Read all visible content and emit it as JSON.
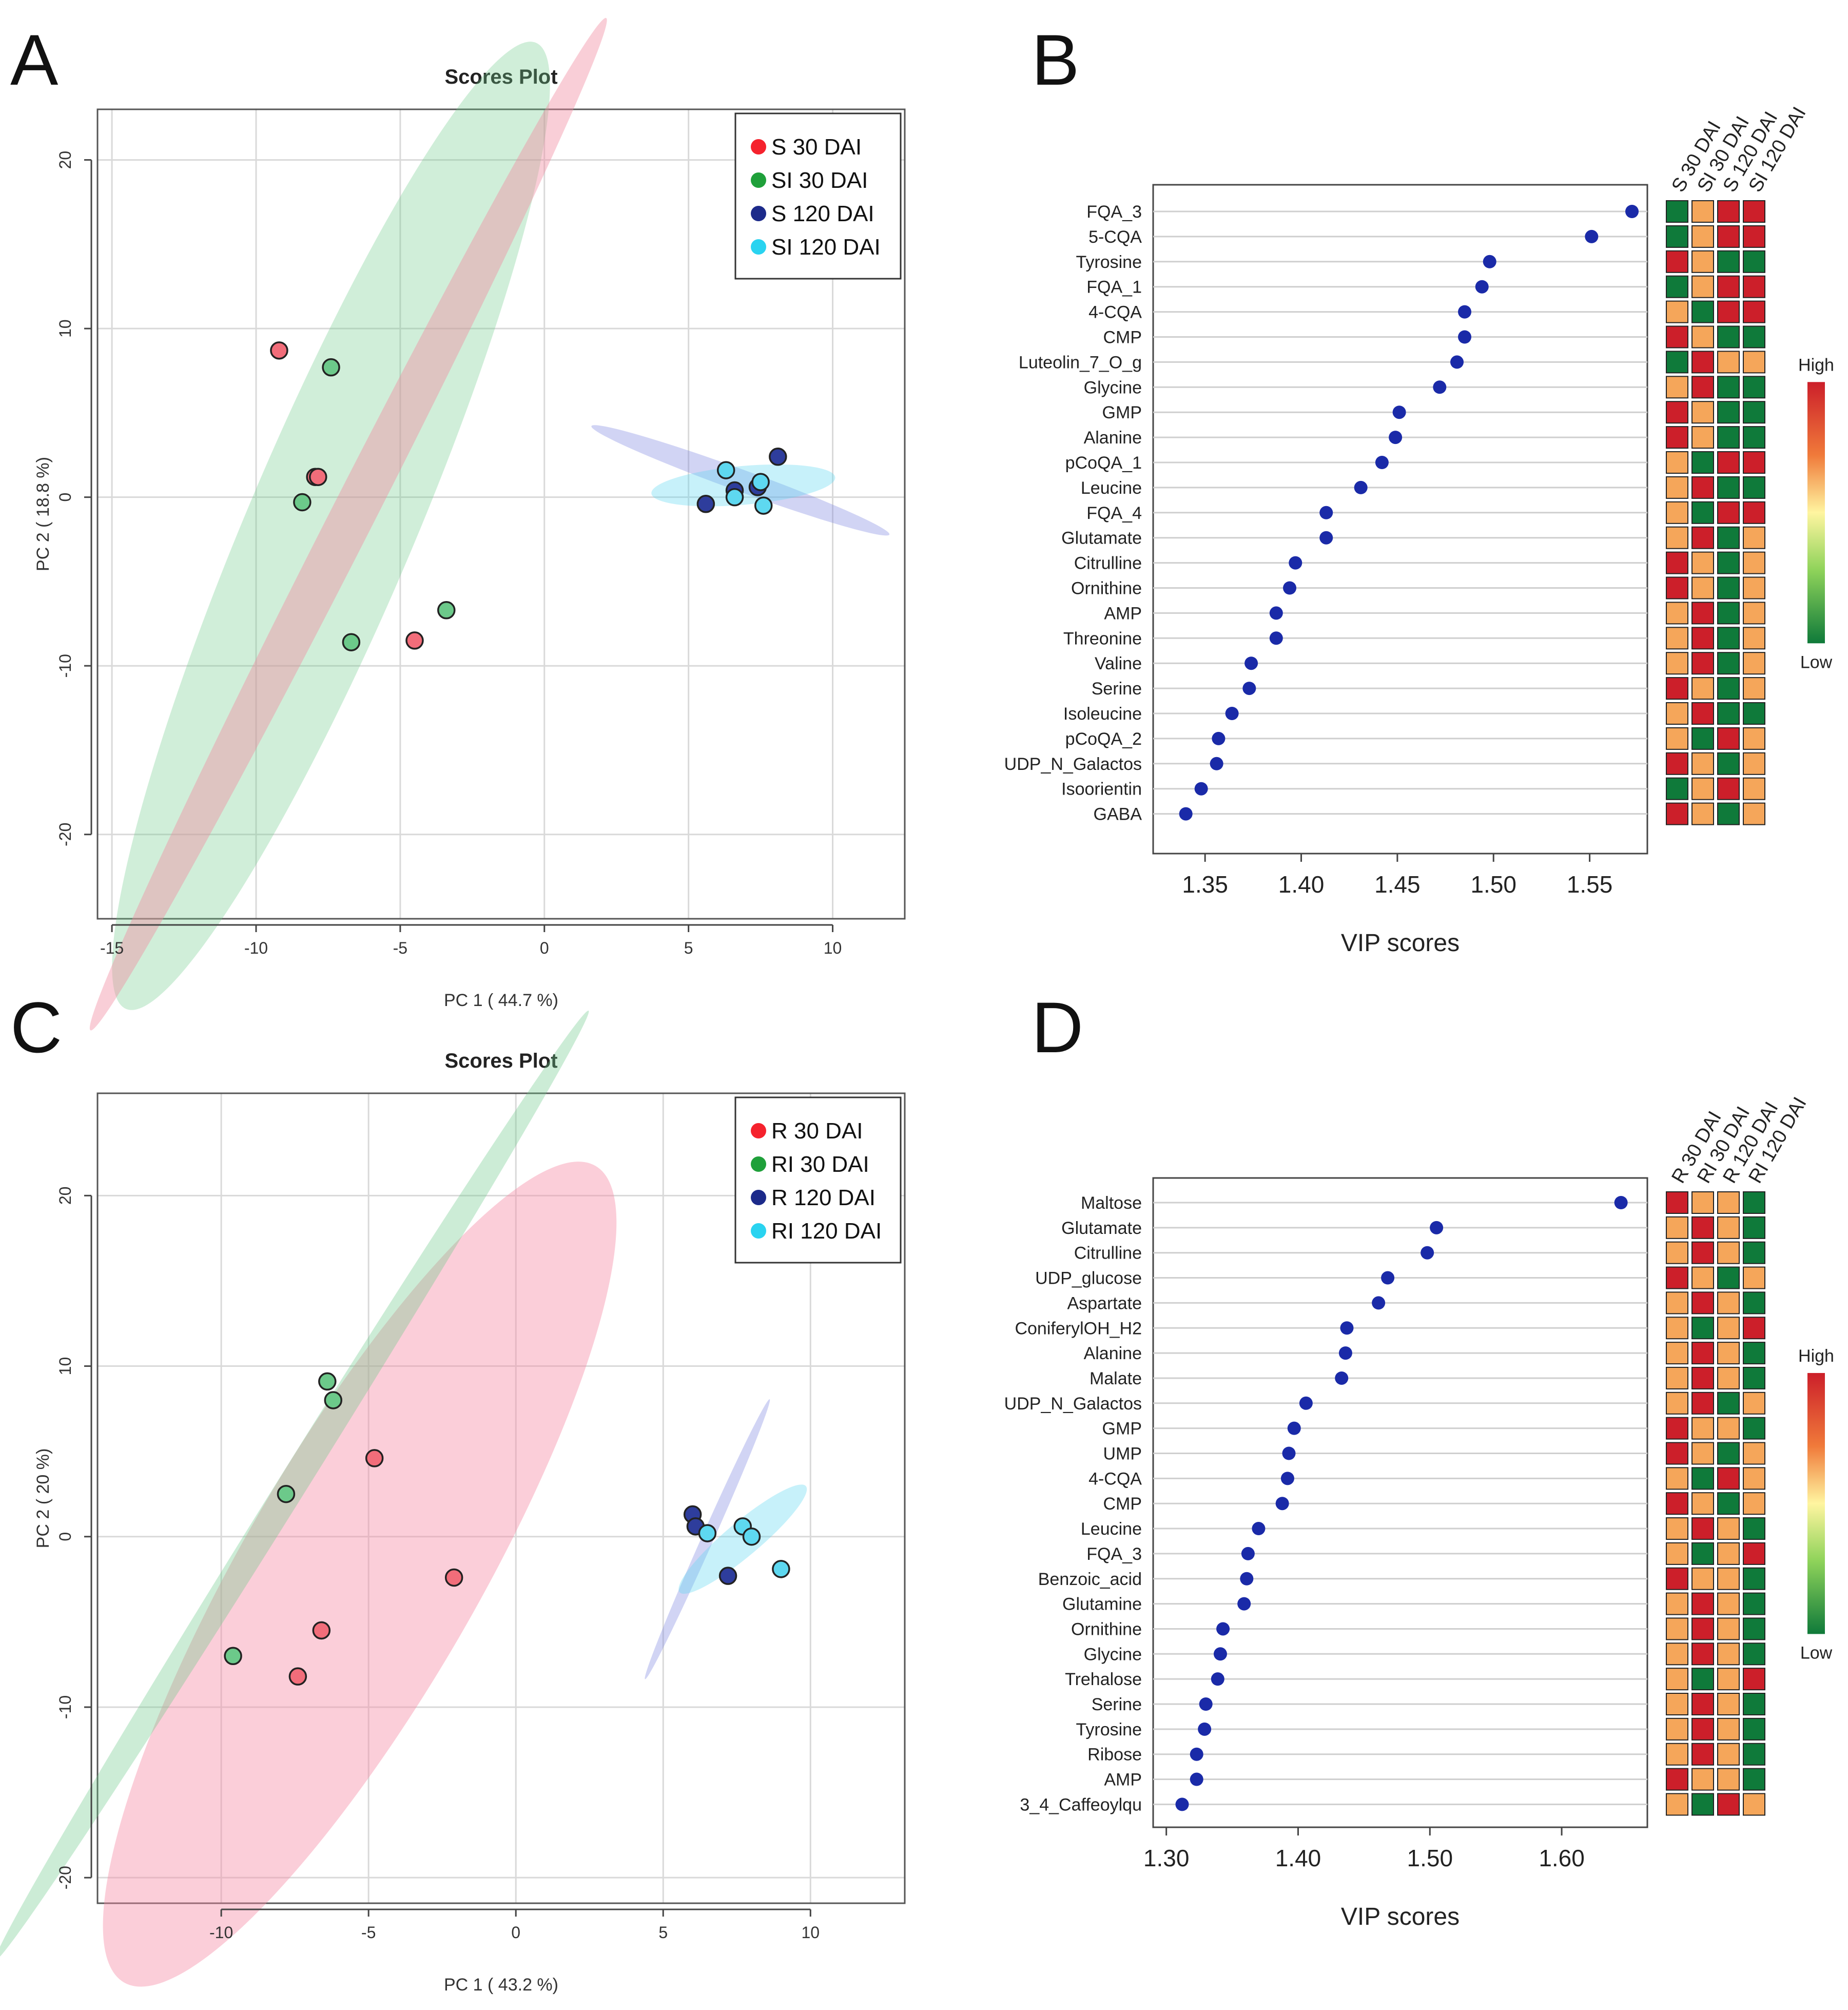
{
  "colors": {
    "S": "#f26d7a",
    "SI": "#6cc98a",
    "S120": "#2e3d9c",
    "SI120": "#5ed8f0",
    "high": "#cc1f2a",
    "mid_high": "#f5a65a",
    "mid_low": "#9fd95a",
    "low": "#0f7a3a",
    "vip_dot": "#1a2aa8"
  },
  "panels": {
    "A": "A",
    "B": "B",
    "C": "C",
    "D": "D"
  },
  "chart_data": [
    {
      "id": "A",
      "type": "scatter",
      "title": "Scores Plot",
      "xlabel": "PC 1 ( 44.7 %)",
      "ylabel": "PC 2 ( 18.8 %)",
      "xlim": [
        -15.5,
        12.5
      ],
      "ylim": [
        -25,
        23
      ],
      "xticks": [
        -15,
        -10,
        -5,
        0,
        5,
        10
      ],
      "yticks": [
        20,
        10,
        0,
        -10,
        -20
      ],
      "legend": [
        {
          "label": "S 30 DAI",
          "color": "#f5222d"
        },
        {
          "label": "SI 30 DAI",
          "color": "#1fa03a"
        },
        {
          "label": "S 120 DAI",
          "color": "#1c2a8a"
        },
        {
          "label": "SI 120 DAI",
          "color": "#29d3f0"
        }
      ],
      "ellipses": [
        {
          "group": "SI 30 DAI",
          "color": "#6cc98a",
          "opacity": 0.32,
          "cx": -7.4,
          "cy": -1.7,
          "rx": 18.2,
          "ry": 4.95,
          "angle": -67
        },
        {
          "group": "S 30 DAI",
          "color": "#f08aa0",
          "opacity": 0.42,
          "cx": -6.8,
          "cy": -1.6,
          "rx": 19.7,
          "ry": 1.3,
          "angle": -63
        },
        {
          "group": "S 120 DAI",
          "color": "#7a84e0",
          "opacity": 0.35,
          "cx": 6.8,
          "cy": 1.0,
          "rx": 5.5,
          "ry": 0.65,
          "angle": 20
        },
        {
          "group": "SI 120 DAI",
          "color": "#5ed8f0",
          "opacity": 0.35,
          "cx": 6.9,
          "cy": 0.7,
          "rx": 3.2,
          "ry": 1.15,
          "angle": -5
        }
      ],
      "series": [
        {
          "name": "S 30 DAI",
          "color": "#f26d7a",
          "x": [
            -9.2,
            -7.95,
            -7.85,
            -4.5
          ],
          "y": [
            8.7,
            1.2,
            1.2,
            -8.5
          ]
        },
        {
          "name": "SI 30 DAI",
          "color": "#6cc98a",
          "x": [
            -7.4,
            -8.4,
            -6.7,
            -3.4
          ],
          "y": [
            7.7,
            -0.3,
            -8.6,
            -6.7
          ]
        },
        {
          "name": "S 120 DAI",
          "color": "#2e3d9c",
          "x": [
            5.6,
            6.6,
            7.4,
            8.1
          ],
          "y": [
            -0.4,
            0.4,
            0.6,
            2.4
          ]
        },
        {
          "name": "SI 120 DAI",
          "color": "#5ed8f0",
          "x": [
            6.3,
            6.6,
            7.5,
            7.6
          ],
          "y": [
            1.6,
            0.0,
            0.9,
            -0.5
          ]
        }
      ]
    },
    {
      "id": "B",
      "type": "dot",
      "xlabel": "VIP scores",
      "xlim": [
        1.323,
        1.58
      ],
      "xticks": [
        1.35,
        1.4,
        1.45,
        1.5,
        1.55
      ],
      "xtick_labels": [
        "1.35",
        "1.40",
        "1.45",
        "1.50",
        "1.55"
      ],
      "labels": [
        "FQA_3",
        "5-CQA",
        "Tyrosine",
        "FQA_1",
        "4-CQA",
        "CMP",
        "Luteolin_7_O_g",
        "Glycine",
        "GMP",
        "Alanine",
        "pCoQA_1",
        "Leucine",
        "FQA_4",
        "Glutamate",
        "Citrulline",
        "Ornithine",
        "AMP",
        "Threonine",
        "Valine",
        "Serine",
        "Isoleucine",
        "pCoQA_2",
        "UDP_N_Galactos",
        "Isoorientin",
        "GABA"
      ],
      "values": [
        1.572,
        1.551,
        1.498,
        1.494,
        1.485,
        1.485,
        1.481,
        1.472,
        1.451,
        1.449,
        1.442,
        1.431,
        1.413,
        1.413,
        1.397,
        1.394,
        1.387,
        1.387,
        1.374,
        1.373,
        1.364,
        1.357,
        1.356,
        1.348,
        1.34
      ],
      "heatmap_columns": [
        "S 30 DAI",
        "SI 30 DAI",
        "S 120 DAI",
        "SI 120 DAI"
      ],
      "heatmap": [
        [
          1,
          3,
          4,
          4
        ],
        [
          1,
          3,
          4,
          4
        ],
        [
          4,
          3,
          1,
          1
        ],
        [
          1,
          3,
          4,
          4
        ],
        [
          3,
          1,
          4,
          4
        ],
        [
          4,
          3,
          1,
          1
        ],
        [
          1,
          4,
          3,
          3
        ],
        [
          3,
          4,
          1,
          1
        ],
        [
          4,
          3,
          1,
          1
        ],
        [
          4,
          3,
          1,
          1
        ],
        [
          3,
          1,
          4,
          4
        ],
        [
          3,
          4,
          1,
          1
        ],
        [
          3,
          1,
          4,
          4
        ],
        [
          3,
          4,
          1,
          3
        ],
        [
          4,
          3,
          1,
          3
        ],
        [
          4,
          3,
          1,
          3
        ],
        [
          3,
          4,
          1,
          3
        ],
        [
          3,
          4,
          1,
          3
        ],
        [
          3,
          4,
          1,
          3
        ],
        [
          4,
          3,
          1,
          3
        ],
        [
          3,
          4,
          1,
          1
        ],
        [
          3,
          1,
          4,
          3
        ],
        [
          4,
          3,
          1,
          3
        ],
        [
          1,
          3,
          4,
          3
        ],
        [
          4,
          3,
          1,
          3
        ]
      ],
      "scale_high": "High",
      "scale_low": "Low"
    },
    {
      "id": "C",
      "type": "scatter",
      "title": "Scores Plot",
      "xlabel": "PC 1 ( 43.2 %)",
      "ylabel": "PC 2 ( 20 %)",
      "xlim": [
        -14.2,
        13.2
      ],
      "ylim": [
        -21.5,
        26
      ],
      "xticks": [
        -10,
        -5,
        0,
        5,
        10
      ],
      "yticks": [
        20,
        10,
        0,
        -10,
        -20
      ],
      "legend": [
        {
          "label": "R 30 DAI",
          "color": "#f5222d"
        },
        {
          "label": "RI 30 DAI",
          "color": "#1fa03a"
        },
        {
          "label": "R 120 DAI",
          "color": "#1c2a8a"
        },
        {
          "label": "RI 120 DAI",
          "color": "#29d3f0"
        }
      ],
      "ellipses": [
        {
          "group": "R 30 DAI",
          "color": "#f58aa5",
          "opacity": 0.42,
          "cx": -5.3,
          "cy": -2.2,
          "rx": 16.0,
          "ry": 6.9,
          "angle": -60
        },
        {
          "group": "RI 30 DAI",
          "color": "#6cc98a",
          "opacity": 0.35,
          "cx": -7.6,
          "cy": 3.0,
          "rx": 19.0,
          "ry": 0.85,
          "angle": -58
        },
        {
          "group": "R 120 DAI",
          "color": "#7a84e0",
          "opacity": 0.35,
          "cx": 6.5,
          "cy": -0.15,
          "rx": 5.2,
          "ry": 0.35,
          "angle": -66
        },
        {
          "group": "RI 120 DAI",
          "color": "#5ed8f0",
          "opacity": 0.35,
          "cx": 7.7,
          "cy": -0.15,
          "rx": 2.8,
          "ry": 1.0,
          "angle": -40
        }
      ],
      "series": [
        {
          "name": "R 30 DAI",
          "color": "#f26d7a",
          "x": [
            -4.8,
            -6.6,
            -7.4,
            -2.1
          ],
          "y": [
            4.6,
            -5.5,
            -8.2,
            -2.4
          ]
        },
        {
          "name": "RI 30 DAI",
          "color": "#6cc98a",
          "x": [
            -6.4,
            -6.2,
            -7.8,
            -9.6
          ],
          "y": [
            9.1,
            8.0,
            2.5,
            -7.0
          ]
        },
        {
          "name": "R 120 DAI",
          "color": "#2e3d9c",
          "x": [
            6.0,
            6.1,
            7.2
          ],
          "y": [
            1.3,
            0.6,
            -2.3
          ]
        },
        {
          "name": "RI 120 DAI",
          "color": "#5ed8f0",
          "x": [
            6.5,
            7.7,
            8.0,
            9.0
          ],
          "y": [
            0.2,
            0.6,
            0.0,
            -1.9
          ]
        }
      ]
    },
    {
      "id": "D",
      "type": "dot",
      "xlabel": "VIP scores",
      "xlim": [
        1.29,
        1.665
      ],
      "xticks": [
        1.3,
        1.4,
        1.5,
        1.6
      ],
      "xtick_labels": [
        "1.30",
        "1.40",
        "1.50",
        "1.60"
      ],
      "labels": [
        "Maltose",
        "Glutamate",
        "Citrulline",
        "UDP_glucose",
        "Aspartate",
        "ConiferylOH_H2",
        "Alanine",
        "Malate",
        "UDP_N_Galactos",
        "GMP",
        "UMP",
        "4-CQA",
        "CMP",
        "Leucine",
        "FQA_3",
        "Benzoic_acid",
        "Glutamine",
        "Ornithine",
        "Glycine",
        "Trehalose",
        "Serine",
        "Tyrosine",
        "Ribose",
        "AMP",
        "3_4_Caffeoylqu"
      ],
      "values": [
        1.645,
        1.505,
        1.498,
        1.468,
        1.461,
        1.437,
        1.436,
        1.433,
        1.406,
        1.397,
        1.393,
        1.392,
        1.388,
        1.37,
        1.362,
        1.361,
        1.359,
        1.343,
        1.341,
        1.339,
        1.33,
        1.329,
        1.323,
        1.323,
        1.312
      ],
      "heatmap_columns": [
        "R 30 DAI",
        "RI 30 DAI",
        "R 120 DAI",
        "RI 120 DAI"
      ],
      "heatmap": [
        [
          4,
          3,
          3,
          1
        ],
        [
          3,
          4,
          3,
          1
        ],
        [
          3,
          4,
          3,
          1
        ],
        [
          4,
          3,
          1,
          3
        ],
        [
          3,
          4,
          3,
          1
        ],
        [
          3,
          1,
          3,
          4
        ],
        [
          3,
          4,
          3,
          1
        ],
        [
          3,
          4,
          3,
          1
        ],
        [
          3,
          4,
          1,
          3
        ],
        [
          4,
          3,
          3,
          1
        ],
        [
          4,
          3,
          1,
          3
        ],
        [
          3,
          1,
          4,
          3
        ],
        [
          4,
          3,
          1,
          3
        ],
        [
          3,
          4,
          3,
          1
        ],
        [
          3,
          1,
          3,
          4
        ],
        [
          4,
          3,
          3,
          1
        ],
        [
          3,
          4,
          3,
          1
        ],
        [
          3,
          4,
          3,
          1
        ],
        [
          3,
          4,
          3,
          1
        ],
        [
          3,
          1,
          3,
          4
        ],
        [
          3,
          4,
          3,
          1
        ],
        [
          3,
          4,
          3,
          1
        ],
        [
          3,
          4,
          3,
          1
        ],
        [
          4,
          3,
          3,
          1
        ],
        [
          3,
          1,
          4,
          3
        ]
      ],
      "scale_high": "High",
      "scale_low": "Low"
    }
  ]
}
